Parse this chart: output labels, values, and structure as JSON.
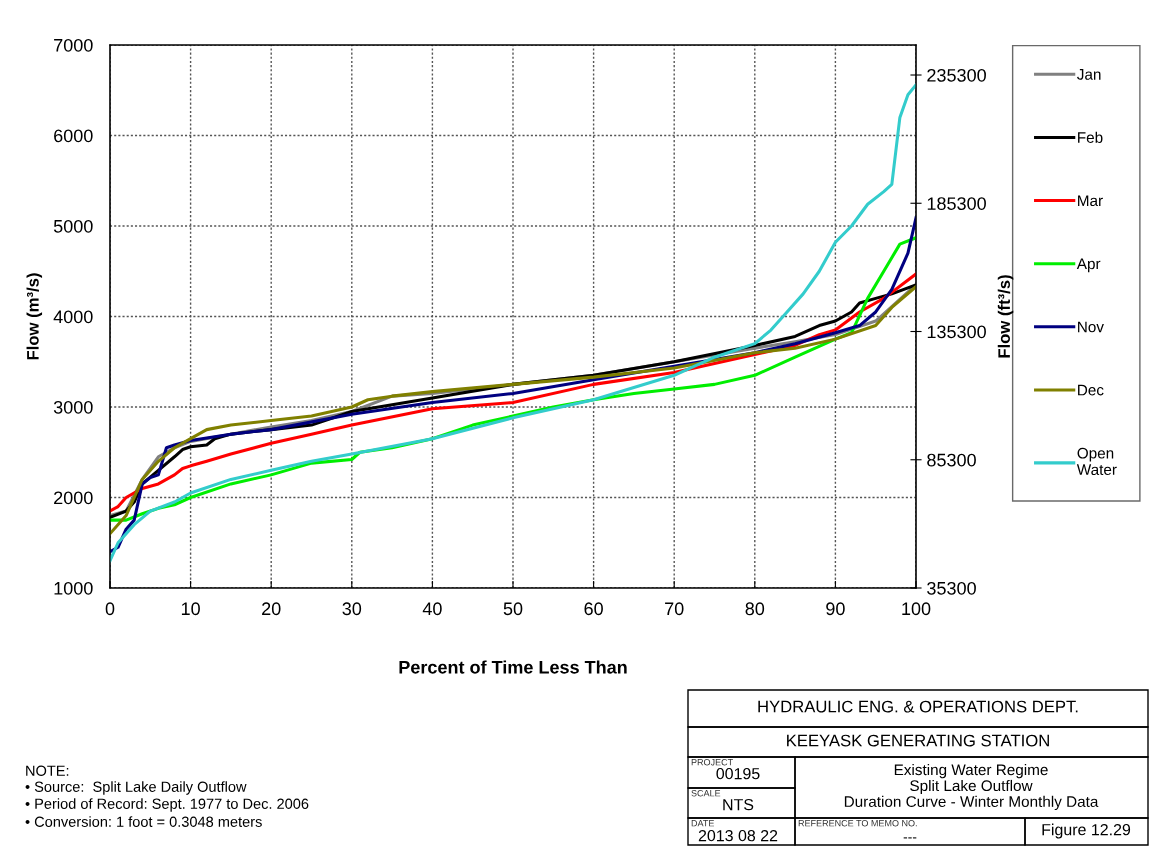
{
  "chart_data": {
    "type": "line",
    "title": "Existing Water Regime\nSplit Lake Outflow\nDuration Curve - Winter Monthly Data",
    "xlabel": "Percent of Time Less Than",
    "ylabel": "Flow (m³/s)",
    "y2label": "Flow (ft³/s)",
    "xlim": [
      0,
      100
    ],
    "xticks": [
      0,
      10,
      20,
      30,
      40,
      50,
      60,
      70,
      80,
      90,
      100
    ],
    "ylim": [
      1000,
      7000
    ],
    "yticks": [
      1000,
      2000,
      3000,
      4000,
      5000,
      6000,
      7000
    ],
    "y2lim": [
      35300,
      247000
    ],
    "y2ticks": [
      35300,
      85300,
      135300,
      185300,
      235300
    ],
    "grid": true,
    "legend": "right",
    "line_style": "solid",
    "marker": "none",
    "series": [
      {
        "name": "Jan",
        "color": "#808080",
        "x": [
          0,
          2,
          4,
          6,
          8,
          10,
          15,
          20,
          25,
          30,
          35,
          40,
          50,
          60,
          70,
          80,
          85,
          90,
          95,
          100
        ],
        "values": [
          1800,
          1850,
          2200,
          2450,
          2550,
          2620,
          2700,
          2780,
          2850,
          2950,
          3120,
          3150,
          3250,
          3350,
          3500,
          3650,
          3720,
          3800,
          3950,
          4350
        ]
      },
      {
        "name": "Feb",
        "color": "#000000",
        "x": [
          0,
          2,
          3,
          4,
          6,
          8,
          9,
          10,
          12,
          13,
          15,
          20,
          25,
          30,
          40,
          50,
          60,
          70,
          80,
          85,
          88,
          90,
          92,
          93,
          95,
          97,
          100
        ],
        "values": [
          1780,
          1850,
          1950,
          2150,
          2300,
          2450,
          2530,
          2560,
          2580,
          2650,
          2700,
          2750,
          2800,
          2950,
          3100,
          3250,
          3350,
          3500,
          3680,
          3780,
          3900,
          3950,
          4050,
          4150,
          4200,
          4250,
          4350
        ]
      },
      {
        "name": "Mar",
        "color": "#ff0000",
        "x": [
          0,
          1,
          2,
          4,
          6,
          8,
          9,
          10,
          12,
          15,
          20,
          25,
          30,
          40,
          50,
          60,
          70,
          80,
          85,
          88,
          90,
          93,
          96,
          100
        ],
        "values": [
          1850,
          1900,
          2000,
          2100,
          2150,
          2250,
          2320,
          2350,
          2400,
          2480,
          2600,
          2700,
          2800,
          2980,
          3050,
          3250,
          3380,
          3580,
          3680,
          3800,
          3850,
          4050,
          4200,
          4470
        ]
      },
      {
        "name": "Apr",
        "color": "#00ee00",
        "x": [
          0,
          2,
          4,
          6,
          8,
          10,
          15,
          20,
          25,
          30,
          31,
          35,
          40,
          45,
          50,
          55,
          60,
          65,
          70,
          75,
          80,
          85,
          90,
          92,
          94,
          96,
          98,
          100
        ],
        "values": [
          1750,
          1750,
          1820,
          1880,
          1920,
          2000,
          2150,
          2250,
          2380,
          2420,
          2500,
          2550,
          2650,
          2800,
          2900,
          3000,
          3080,
          3150,
          3200,
          3250,
          3350,
          3550,
          3750,
          3820,
          4200,
          4500,
          4800,
          4870
        ]
      },
      {
        "name": "Nov",
        "color": "#000080",
        "x": [
          0,
          1,
          2,
          3,
          4,
          5,
          6,
          7,
          8,
          10,
          15,
          20,
          30,
          40,
          50,
          60,
          70,
          80,
          85,
          90,
          93,
          95,
          97,
          99,
          100
        ],
        "values": [
          1400,
          1450,
          1650,
          1750,
          2150,
          2220,
          2250,
          2550,
          2580,
          2630,
          2700,
          2750,
          2920,
          3050,
          3150,
          3300,
          3450,
          3600,
          3700,
          3820,
          3900,
          4050,
          4300,
          4700,
          5090
        ]
      },
      {
        "name": "Dec",
        "color": "#808000",
        "x": [
          0,
          2,
          4,
          6,
          8,
          10,
          12,
          15,
          20,
          25,
          30,
          32,
          35,
          40,
          50,
          60,
          70,
          80,
          85,
          90,
          95,
          97,
          100
        ],
        "values": [
          1600,
          1800,
          2200,
          2400,
          2550,
          2650,
          2750,
          2800,
          2850,
          2900,
          3000,
          3080,
          3120,
          3170,
          3250,
          3330,
          3430,
          3600,
          3650,
          3750,
          3900,
          4100,
          4330
        ]
      },
      {
        "name": "Open\nWater",
        "color": "#33cccc",
        "x": [
          0,
          1,
          3,
          5,
          8,
          10,
          15,
          20,
          25,
          30,
          40,
          50,
          60,
          70,
          75,
          80,
          82,
          84,
          86,
          88,
          90,
          92,
          94,
          96,
          97,
          98,
          99,
          100
        ],
        "values": [
          1300,
          1500,
          1700,
          1850,
          1950,
          2050,
          2200,
          2300,
          2400,
          2480,
          2650,
          2880,
          3080,
          3350,
          3550,
          3700,
          3850,
          4050,
          4250,
          4500,
          4820,
          5000,
          5240,
          5380,
          5460,
          6200,
          6450,
          6560
        ]
      }
    ],
    "annotations": [
      "NOTE:",
      "• Source:  Split Lake Daily Outflow",
      "• Period of Record: Sept. 1977 to Dec. 2006",
      "• Conversion: 1 foot = 0.3048 meters",
      "HYDRAULIC ENG. & OPERATIONS DEPT.",
      "KEEYASK GENERATING STATION",
      "PROJECT",
      "00195",
      "SCALE",
      "NTS",
      "DATE",
      "2013 08 22",
      "REFERENCE TO MEMO NO.",
      "---",
      "Figure 12.29"
    ]
  }
}
